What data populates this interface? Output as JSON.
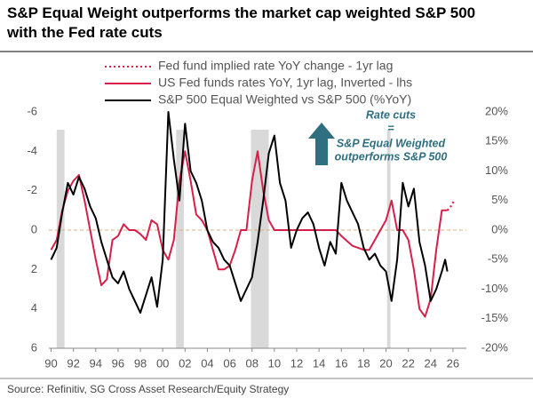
{
  "chart_data": {
    "type": "line",
    "title": "S&P Equal Weight outperforms the market cap weighted S&P 500 with the Fed rate cuts",
    "source": "Source: Refinitiv, SG Cross Asset Research/Equity Strategy",
    "annotation": {
      "lines": [
        "Rate cuts",
        "=",
        "S&P Equal Weighted",
        "outperforms S&P 500"
      ],
      "color": "#2e6f80"
    },
    "xlim": [
      1989.8,
      2027.2
    ],
    "xticks": [
      {
        "value": 1990,
        "label": "90"
      },
      {
        "value": 1992,
        "label": "92"
      },
      {
        "value": 1994,
        "label": "94"
      },
      {
        "value": 1996,
        "label": "96"
      },
      {
        "value": 1998,
        "label": "98"
      },
      {
        "value": 2000,
        "label": "00"
      },
      {
        "value": 2002,
        "label": "02"
      },
      {
        "value": 2004,
        "label": "04"
      },
      {
        "value": 2006,
        "label": "06"
      },
      {
        "value": 2008,
        "label": "08"
      },
      {
        "value": 2010,
        "label": "10"
      },
      {
        "value": 2012,
        "label": "12"
      },
      {
        "value": 2014,
        "label": "14"
      },
      {
        "value": 2016,
        "label": "16"
      },
      {
        "value": 2018,
        "label": "18"
      },
      {
        "value": 2020,
        "label": "20"
      },
      {
        "value": 2022,
        "label": "22"
      },
      {
        "value": 2024,
        "label": "24"
      },
      {
        "value": 2026,
        "label": "26"
      }
    ],
    "ylim": [
      -6,
      6
    ],
    "y_inverted": true,
    "yticks": [
      -6,
      -4,
      -2,
      0,
      2,
      4,
      6
    ],
    "y2lim": [
      -20,
      20
    ],
    "y2ticks": [
      {
        "value": 20,
        "label": "20%"
      },
      {
        "value": 15,
        "label": "15%"
      },
      {
        "value": 10,
        "label": "10%"
      },
      {
        "value": 5,
        "label": "5%"
      },
      {
        "value": 0,
        "label": "0%"
      },
      {
        "value": -5,
        "label": "-5%"
      },
      {
        "value": -10,
        "label": "-10%"
      },
      {
        "value": -15,
        "label": "-15%"
      },
      {
        "value": -20,
        "label": "-20%"
      }
    ],
    "zero_line_color": "#d9b27c",
    "shade_color": "#d9d9d9",
    "shaded_periods": [
      [
        1990.5,
        1991.2
      ],
      [
        2001.2,
        2001.9
      ],
      [
        2007.9,
        2009.5
      ],
      [
        2020.1,
        2020.4
      ]
    ],
    "series": [
      {
        "name": "Fed fund implied rate YoY change - 1yr lag",
        "color": "#d6204a",
        "style": "dotted",
        "axis": "y",
        "x": [
          2025.5,
          2025.8,
          2026.1
        ],
        "values": [
          -1.0,
          -1.2,
          -1.5
        ]
      },
      {
        "name": "US Fed funds rates YoY, 1yr lag, Inverted - lhs",
        "color": "#d6204a",
        "style": "solid",
        "axis": "y",
        "x": [
          1990,
          1990.5,
          1991,
          1991.5,
          1992,
          1992.5,
          1993,
          1993.5,
          1994,
          1994.5,
          1995,
          1995.5,
          1996,
          1996.5,
          1997,
          1997.5,
          1998,
          1998.5,
          1999,
          1999.5,
          2000,
          2000.5,
          2001,
          2001.5,
          2002,
          2002.5,
          2003,
          2003.5,
          2004,
          2004.5,
          2005,
          2005.5,
          2006,
          2006.5,
          2007,
          2007.5,
          2008,
          2008.5,
          2009,
          2009.5,
          2010,
          2012,
          2014,
          2015.5,
          2016,
          2017,
          2018,
          2018.5,
          2019,
          2019.5,
          2020,
          2020.5,
          2021,
          2021.5,
          2022,
          2022.5,
          2023,
          2023.5,
          2024,
          2024.5,
          2025,
          2025.5
        ],
        "values": [
          1.0,
          0.5,
          -1.0,
          -2.0,
          -2.5,
          -2.8,
          -1.5,
          0,
          1.5,
          2.8,
          2.5,
          0.5,
          0.3,
          -0.3,
          0,
          0,
          0.2,
          0.5,
          -0.5,
          -0.3,
          1.0,
          1.5,
          0.5,
          -2.5,
          -4.0,
          -2.5,
          -0.8,
          -0.5,
          0,
          1.0,
          2.0,
          2.0,
          1.8,
          1.0,
          0,
          0,
          -2.5,
          -4.0,
          -2.0,
          -0.5,
          0,
          0,
          0,
          0,
          0.3,
          0.8,
          1.0,
          1.0,
          0.5,
          0,
          -0.5,
          -1.5,
          0,
          0,
          0.5,
          2.0,
          4.0,
          4.4,
          3.5,
          1.0,
          -1.0,
          -1.0
        ]
      },
      {
        "name": "S&P 500 Equal Weighted vs S&P 500 (%YoY)",
        "color": "#000000",
        "style": "solid",
        "axis": "y2",
        "x": [
          1990,
          1990.5,
          1991,
          1991.5,
          1992,
          1992.5,
          1993,
          1993.5,
          1994,
          1994.5,
          1995,
          1995.5,
          1996,
          1996.5,
          1997,
          1997.5,
          1998,
          1998.5,
          1999,
          1999.5,
          2000,
          2000.5,
          2001,
          2001.5,
          2002,
          2002.5,
          2003,
          2003.5,
          2004,
          2004.5,
          2005,
          2005.5,
          2006,
          2006.5,
          2007,
          2007.5,
          2008,
          2008.5,
          2009,
          2009.5,
          2010,
          2010.5,
          2011,
          2011.5,
          2012,
          2012.5,
          2013,
          2013.5,
          2014,
          2014.5,
          2015,
          2015.5,
          2016,
          2016.5,
          2017,
          2017.5,
          2018,
          2018.5,
          2019,
          2019.5,
          2020,
          2020.5,
          2021,
          2021.5,
          2022,
          2022.5,
          2023,
          2023.5,
          2024,
          2024.5,
          2025,
          2025.3,
          2025.5
        ],
        "values": [
          -5,
          -3,
          3,
          8,
          6,
          9,
          7,
          4,
          2,
          -2,
          -5,
          -8,
          -9,
          -7,
          -10,
          -12,
          -14,
          -11,
          -8,
          -13,
          -5,
          20,
          12,
          5,
          18,
          10,
          8,
          5,
          0,
          -2,
          -3,
          -5,
          -6,
          -9,
          -12,
          -10,
          -8,
          -2,
          5,
          13,
          16,
          8,
          5,
          -3,
          0,
          2,
          3,
          1,
          -3,
          -6,
          -2,
          -4,
          8,
          5,
          3,
          1,
          -3,
          -5,
          -4,
          -6,
          -7,
          -12,
          -5,
          8,
          4,
          7,
          -2,
          -6,
          -12,
          -10,
          -7,
          -5,
          -7
        ]
      }
    ]
  }
}
